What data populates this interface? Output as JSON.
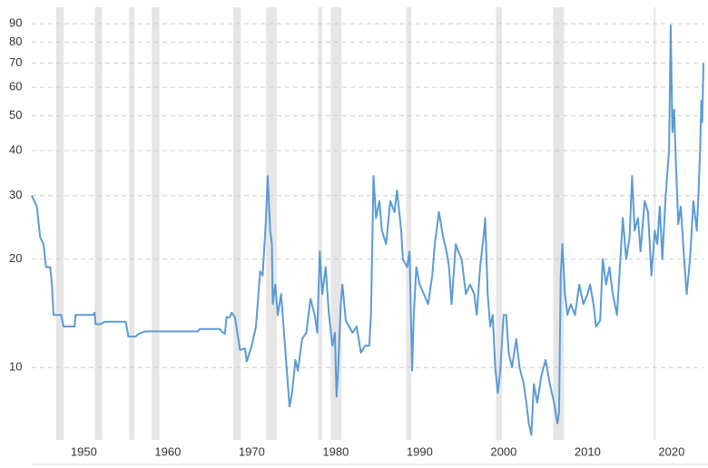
{
  "chart_data": {
    "type": "line",
    "log_y": true,
    "grid": true,
    "xlim": [
      1943.8,
      2023.8
    ],
    "xticks": [
      1950,
      1960,
      1970,
      1980,
      1990,
      2000,
      2010,
      2020
    ],
    "ylim": [
      6.3,
      100
    ],
    "yticks": [
      10,
      20,
      30,
      40,
      50,
      60,
      70,
      80,
      90
    ],
    "recession_color": "#e6e6e6",
    "recessions": [
      [
        1946.7,
        1947.6
      ],
      [
        1951.3,
        1952.2
      ],
      [
        1955.4,
        1956.0
      ],
      [
        1958.1,
        1959.0
      ],
      [
        1967.8,
        1968.7
      ],
      [
        1971.7,
        1973.0
      ],
      [
        1977.9,
        1978.4
      ],
      [
        1979.4,
        1980.7
      ],
      [
        1988.4,
        1989.0
      ],
      [
        1999.1,
        1999.8
      ],
      [
        2005.9,
        2007.2
      ],
      [
        2017.9,
        2018.1
      ]
    ],
    "series": [
      {
        "color": "#5b9bd5",
        "x": [
          1943.8,
          1944.4,
          1944.8,
          1945.2,
          1945.5,
          1946,
          1946.2,
          1946.4,
          1947.3,
          1947.6,
          1948.9,
          1949,
          1951.1,
          1951.3,
          1951.4,
          1952,
          1952.5,
          1955,
          1955.3,
          1956.2,
          1956.5,
          1957.3,
          1963.6,
          1963.8,
          1966.2,
          1966.4,
          1966.8,
          1967,
          1967.4,
          1967.6,
          1968,
          1968.6,
          1969.2,
          1969.4,
          1970,
          1970.5,
          1971,
          1971.3,
          1971.7,
          1971.9,
          1972.2,
          1972.4,
          1972.5,
          1972.8,
          1973.1,
          1973.5,
          1973.9,
          1974.3,
          1974.5,
          1974.8,
          1975.2,
          1975.5,
          1976,
          1976.5,
          1977,
          1977.5,
          1977.8,
          1978.1,
          1978.4,
          1978.8,
          1979.2,
          1979.6,
          1979.9,
          1980.1,
          1980.3,
          1980.6,
          1980.8,
          1981.2,
          1982,
          1982.5,
          1983,
          1983.5,
          1984,
          1984.2,
          1984.5,
          1984.8,
          1985.2,
          1985.5,
          1986,
          1986.5,
          1987,
          1987.3,
          1987.8,
          1988,
          1988.5,
          1988.8,
          1989.1,
          1989.3,
          1989.6,
          1990,
          1990.5,
          1991,
          1991.5,
          1991.8,
          1992.3,
          1992.8,
          1993.2,
          1993.5,
          1993.8,
          1994.3,
          1994.6,
          1995,
          1995.5,
          1996,
          1996.5,
          1996.8,
          1997.2,
          1997.6,
          1997.8,
          1998.1,
          1998.4,
          1998.7,
          1999,
          1999.3,
          1999.6,
          2000,
          2000.3,
          2000.6,
          2001,
          2001.5,
          2001.9,
          2002.4,
          2002.7,
          2003,
          2003.3,
          2003.6,
          2004,
          2004.5,
          2005,
          2005.5,
          2006,
          2006.4,
          2006.6,
          2006.8,
          2007,
          2007.3,
          2007.6,
          2008,
          2008.5,
          2009,
          2009.5,
          2010,
          2010.3,
          2010.7,
          2011,
          2011.5,
          2011.8,
          2012.2,
          2012.6,
          2013,
          2013.5,
          2014.2,
          2014.6,
          2015,
          2015.3,
          2015.6,
          2016,
          2016.3,
          2016.8,
          2017.2,
          2017.6,
          2018,
          2018.3,
          2018.6,
          2018.9,
          2019.3,
          2019.7,
          2019.9,
          2020.1,
          2020.3,
          2020.5,
          2020.8,
          2021.1,
          2021.5,
          2021.8,
          2022.2,
          2022.6,
          2023,
          2023.2,
          2023.4,
          2023.55,
          2023.65,
          2023.8
        ],
        "values": [
          30,
          28,
          23,
          22,
          19,
          19,
          17,
          14,
          14,
          13,
          13,
          14,
          14,
          14.2,
          13.2,
          13.2,
          13.4,
          13.4,
          12.2,
          12.2,
          12.4,
          12.6,
          12.6,
          12.8,
          12.8,
          12.6,
          12.4,
          13.8,
          13.8,
          14.2,
          13.8,
          11.2,
          11.3,
          10.4,
          11.5,
          13,
          18.5,
          18,
          26,
          34,
          24,
          22,
          15,
          17,
          14,
          16,
          12,
          9,
          7.8,
          8.5,
          10.5,
          9.8,
          12,
          12.5,
          15.5,
          14,
          12.5,
          21,
          16,
          19,
          14,
          11.5,
          12.5,
          8.3,
          10,
          15,
          17,
          13.5,
          12.5,
          13,
          11,
          11.5,
          11.5,
          14,
          34,
          26,
          29,
          24,
          22,
          29,
          27,
          31,
          24,
          20,
          19,
          21,
          9.8,
          14,
          19,
          17,
          16,
          15,
          18,
          22,
          27,
          23,
          21,
          19,
          15,
          22,
          21,
          20,
          16,
          17,
          16,
          14,
          19,
          23,
          26,
          16,
          13,
          14,
          10,
          8.5,
          9.8,
          14,
          14,
          11,
          10,
          12,
          10,
          9,
          8,
          7,
          6.5,
          9,
          8,
          9.5,
          10.5,
          9,
          8,
          7,
          7.5,
          18,
          22,
          16,
          14,
          15,
          14,
          17,
          15,
          16,
          17,
          15,
          13,
          13.5,
          20,
          17,
          19,
          16,
          14,
          26,
          20,
          23,
          34,
          24,
          26,
          21,
          29,
          27,
          18,
          24,
          22,
          28,
          20,
          30,
          40,
          89,
          45,
          52,
          38,
          25,
          28,
          20,
          16,
          20,
          29,
          24,
          30,
          40,
          55,
          48,
          70
        ]
      }
    ]
  }
}
